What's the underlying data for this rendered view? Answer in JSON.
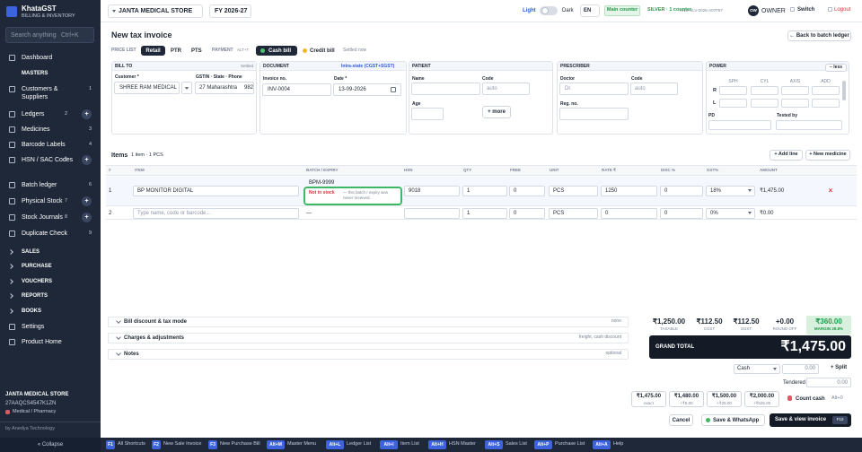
{
  "sidebar": {
    "brand": "KhataGST",
    "tagline": "BILLING & INVENTORY",
    "search": "Search anything",
    "search_key": "Ctrl+K",
    "nav": [
      {
        "label": "Dashboard"
      },
      {
        "label": "MASTERS"
      },
      {
        "label": "Customers & Suppliers",
        "key": "1"
      },
      {
        "label": "Ledgers",
        "key": "2",
        "add": "+"
      },
      {
        "label": "Medicines",
        "key": "3"
      },
      {
        "label": "Barcode Labels",
        "key": "4"
      },
      {
        "label": "HSN / SAC Codes",
        "key": "5",
        "add": "+"
      },
      {
        "label": "Batch ledger",
        "key": "6"
      },
      {
        "label": "Physical Stock",
        "key": "7",
        "add": "+"
      },
      {
        "label": "Stock Journals",
        "key": "8",
        "add": "+"
      },
      {
        "label": "Duplicate Check",
        "key": "9"
      },
      {
        "label": "SALES"
      },
      {
        "label": "PURCHASE"
      },
      {
        "label": "VOUCHERS"
      },
      {
        "label": "REPORTS"
      },
      {
        "label": "BOOKS"
      },
      {
        "label": "Settings"
      },
      {
        "label": "Product Home"
      }
    ],
    "store": "JANTA MEDICAL STORE",
    "gstin": "27AAQCS4547K1ZN",
    "business": "Medical / Pharmacy",
    "vendor": "by Anedya Technology",
    "collapse": "« Collapse"
  },
  "topbar": {
    "store": "JANTA MEDICAL STORE",
    "fy": "FY 2026-27",
    "light": "Light",
    "dark": "Dark",
    "lang": "EN",
    "counter": "Main counter",
    "plan": "SILVER · 1 counter",
    "license": "ANO-SLV-2026-A07F97",
    "avatar": "OW",
    "role": "OWNER",
    "switch": "Switch",
    "logout": "Logout"
  },
  "invoice": {
    "title": "New tax invoice",
    "back": "← Back to batch ledger",
    "price_list_label": "PRICE LIST",
    "price_lists": [
      "Retail",
      "PTR",
      "PTS"
    ],
    "payment_label": "PAYMENT",
    "payment_key": "ALT+T",
    "cash_bill": "Cash bill",
    "credit_bill": "Credit bill",
    "settled_now": "Settled now",
    "bill_to": {
      "title": "BILL TO",
      "status": "Settled",
      "customer_label": "Customer *",
      "customer": "SHREE RAM MEDICAL",
      "gstin_label": "GSTIN · State · Phone",
      "state": "27 Maharashtra",
      "phone": "982"
    },
    "document": {
      "title": "DOCUMENT",
      "tax_mode": "Intra-state (CGST+SGST)",
      "invoice_label": "Invoice no.",
      "invoice_no": "INV-0004",
      "date_label": "Date *",
      "date": "13-09-2026"
    },
    "patient": {
      "title": "PATIENT",
      "name_label": "Name",
      "code_label": "Code",
      "code_placeholder": "auto",
      "age_label": "Age",
      "more": "+ more"
    },
    "prescriber": {
      "title": "PRESCRIBER",
      "doctor_label": "Doctor",
      "doctor_placeholder": "Dr.",
      "code_label": "Code",
      "code_placeholder": "auto",
      "reg_label": "Reg. no."
    },
    "power": {
      "title": "POWER",
      "toggle": "− less",
      "columns": [
        "SPH",
        "CYL",
        "AXIS",
        "ADD"
      ],
      "rows": [
        "R",
        "L"
      ],
      "pd_label": "PD",
      "tested_label": "Tested by"
    }
  },
  "items": {
    "title": "Items",
    "count": "1 item · 1 PCS",
    "add_line": "+ Add line",
    "new_medicine": "+ New medicine",
    "columns": [
      "#",
      "ITEM",
      "BATCH / EXPIRY",
      "HSN",
      "QTY",
      "FREE",
      "UNIT",
      "RATE ₹",
      "DISC %",
      "GST%",
      "AMOUNT"
    ],
    "rows": [
      {
        "no": "1",
        "item": "BP MONITOR DIGITAL",
        "batch": "BPM-9999",
        "stock_status": "Not in stock",
        "stock_note": "— this batch / expiry was never received.",
        "hsn": "9018",
        "qty": "1",
        "free": "0",
        "unit": "PCS",
        "rate": "1250",
        "disc": "0",
        "gst": "18%",
        "amount": "₹1,475.00",
        "remove": "×"
      },
      {
        "no": "2",
        "item_placeholder": "Type name, code or barcode...",
        "batch": "—",
        "qty": "1",
        "free": "0",
        "unit": "PCS",
        "rate": "0",
        "disc": "0",
        "gst": "0%",
        "amount": "₹0.00"
      }
    ]
  },
  "summary": {
    "sections": [
      {
        "title": "Bill discount & tax mode",
        "hint": "none"
      },
      {
        "title": "Charges & adjustments",
        "hint": "freight, cash discount"
      },
      {
        "title": "Notes",
        "hint": "optional"
      }
    ],
    "totals": [
      {
        "value": "₹1,250.00",
        "label": "TAXABLE"
      },
      {
        "value": "₹112.50",
        "label": "CGST"
      },
      {
        "value": "₹112.50",
        "label": "SGST"
      },
      {
        "value": "+0.00",
        "label": "ROUND OFF"
      },
      {
        "value": "₹360.00",
        "label": "MARGIN 28.8%"
      }
    ],
    "grand_total_label": "GRAND TOTAL",
    "grand_total": "₹1,475.00",
    "mode": "Cash",
    "amount": "0.00",
    "split": "+ Split",
    "tendered_label": "Tendered",
    "tendered": "0.00",
    "quick": [
      {
        "amount": "₹1,475.00",
        "note": "exact"
      },
      {
        "amount": "₹1,480.00",
        "note": "+₹5.00"
      },
      {
        "amount": "₹1,500.00",
        "note": "+₹25.00"
      },
      {
        "amount": "₹2,000.00",
        "note": "+₹525.00"
      }
    ],
    "count_cash": "Count cash",
    "count_key": "Alt+0",
    "cancel": "Cancel",
    "whatsapp": "Save & WhatsApp",
    "save": "Save & view invoice",
    "save_key": "F10"
  },
  "shortcuts": [
    {
      "key": "F1",
      "label": "All Shortcuts"
    },
    {
      "key": "F2",
      "label": "New Sale Invoice"
    },
    {
      "key": "F3",
      "label": "New Purchase Bill"
    },
    {
      "key": "Alt+M",
      "label": "Master Menu"
    },
    {
      "key": "Alt+L",
      "label": "Ledger List"
    },
    {
      "key": "Alt+I",
      "label": "Item List"
    },
    {
      "key": "Alt+H",
      "label": "HSN Master"
    },
    {
      "key": "Alt+S",
      "label": "Sales List"
    },
    {
      "key": "Alt+P",
      "label": "Purchase List"
    },
    {
      "key": "Alt+A",
      "label": "Help"
    }
  ]
}
